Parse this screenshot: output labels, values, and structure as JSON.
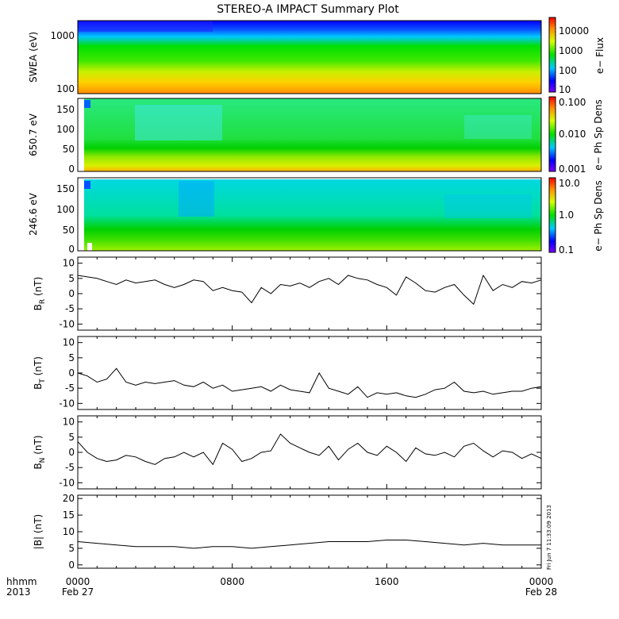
{
  "title": "STEREO-A IMPACT Summary Plot",
  "time_axis": {
    "row1": [
      "0000",
      "0800",
      "1600",
      "0000"
    ],
    "row2": [
      "Feb 27",
      "",
      "",
      "Feb 28"
    ],
    "left_row1": "hhmm",
    "left_row2": "2013"
  },
  "stamp": "Fri Jun  7 11:33:09 2013",
  "chart_data": [
    {
      "type": "heatmap",
      "ylabel": "SWEA (eV)",
      "yticks": [
        "1000",
        "100"
      ],
      "colorbar": {
        "label": "e− Flux",
        "ticks": [
          "10000",
          "1000",
          "100",
          "10"
        ]
      }
    },
    {
      "type": "heatmap",
      "ylabel": "650.7 eV",
      "yticks": [
        "150",
        "100",
        "50",
        "0"
      ],
      "colorbar": {
        "label": "e− Ph Sp Dens",
        "ticks": [
          "0.100",
          "0.010",
          "0.001"
        ]
      }
    },
    {
      "type": "heatmap",
      "ylabel": "246.6 eV",
      "yticks": [
        "150",
        "100",
        "50",
        "0"
      ],
      "colorbar": {
        "label": "e− Ph Sp Dens",
        "ticks": [
          "10.0",
          "1.0",
          "0.1"
        ]
      }
    },
    {
      "type": "line",
      "ylabel": "B",
      "ylabel_sub": "R",
      "ylabel_unit": "(nT)",
      "ylim": [
        -12,
        12
      ],
      "yticks": [
        10,
        5,
        0,
        -5,
        -10
      ],
      "x_hours": [
        0,
        0.5,
        1,
        1.5,
        2,
        2.5,
        3,
        3.5,
        4,
        4.5,
        5,
        5.5,
        6,
        6.5,
        7,
        7.5,
        8,
        8.5,
        9,
        9.5,
        10,
        10.5,
        11,
        11.5,
        12,
        12.5,
        13,
        13.5,
        14,
        14.5,
        15,
        15.5,
        16,
        16.5,
        17,
        17.5,
        18,
        18.5,
        19,
        19.5,
        20,
        20.5,
        21,
        21.5,
        22,
        22.5,
        23,
        23.5,
        24
      ],
      "values": [
        6,
        5.5,
        5,
        4,
        3,
        4.5,
        3.5,
        4,
        4.5,
        3,
        2,
        3,
        4.5,
        4,
        1,
        2,
        1,
        0.5,
        -3,
        2,
        0,
        3,
        2.5,
        3.5,
        2,
        4,
        5,
        3,
        6,
        5,
        4.5,
        3,
        2,
        -0.5,
        5.5,
        3.5,
        1,
        0.5,
        2,
        3,
        -0.5,
        -3.5,
        6,
        1,
        3,
        2,
        4,
        3.5,
        4.5
      ]
    },
    {
      "type": "line",
      "ylabel": "B",
      "ylabel_sub": "T",
      "ylabel_unit": "(nT)",
      "ylim": [
        -12,
        12
      ],
      "yticks": [
        10,
        5,
        0,
        -5,
        -10
      ],
      "x_hours": [
        0,
        0.5,
        1,
        1.5,
        2,
        2.5,
        3,
        3.5,
        4,
        4.5,
        5,
        5.5,
        6,
        6.5,
        7,
        7.5,
        8,
        8.5,
        9,
        9.5,
        10,
        10.5,
        11,
        11.5,
        12,
        12.5,
        13,
        13.5,
        14,
        14.5,
        15,
        15.5,
        16,
        16.5,
        17,
        17.5,
        18,
        18.5,
        19,
        19.5,
        20,
        20.5,
        21,
        21.5,
        22,
        22.5,
        23,
        23.5,
        24
      ],
      "values": [
        0,
        -1,
        -3,
        -2,
        1.5,
        -3,
        -4,
        -3,
        -3.5,
        -3,
        -2.5,
        -4,
        -4.5,
        -3,
        -5,
        -4,
        -6,
        -5.5,
        -5,
        -4.5,
        -6,
        -4,
        -5.5,
        -6,
        -6.5,
        0,
        -5,
        -6,
        -7,
        -4.5,
        -8,
        -6.5,
        -7,
        -6.5,
        -7.5,
        -8,
        -7,
        -5.5,
        -5,
        -3,
        -6,
        -6.5,
        -6,
        -7,
        -6.5,
        -6,
        -6,
        -5,
        -4.5
      ]
    },
    {
      "type": "line",
      "ylabel": "B",
      "ylabel_sub": "N",
      "ylabel_unit": "(nT)",
      "ylim": [
        -12,
        12
      ],
      "yticks": [
        10,
        5,
        0,
        -5,
        -10
      ],
      "x_hours": [
        0,
        0.5,
        1,
        1.5,
        2,
        2.5,
        3,
        3.5,
        4,
        4.5,
        5,
        5.5,
        6,
        6.5,
        7,
        7.5,
        8,
        8.5,
        9,
        9.5,
        10,
        10.5,
        11,
        11.5,
        12,
        12.5,
        13,
        13.5,
        14,
        14.5,
        15,
        15.5,
        16,
        16.5,
        17,
        17.5,
        18,
        18.5,
        19,
        19.5,
        20,
        20.5,
        21,
        21.5,
        22,
        22.5,
        23,
        23.5,
        24
      ],
      "values": [
        3.5,
        0,
        -2,
        -3,
        -2.5,
        -1,
        -1.5,
        -3,
        -4,
        -2,
        -1.5,
        0,
        -1.5,
        0,
        -4,
        3,
        1,
        -3,
        -2,
        0,
        0.5,
        6,
        3,
        1.5,
        0,
        -1,
        2,
        -2.5,
        1,
        3,
        0,
        -1,
        2,
        0,
        -3,
        1.5,
        -0.5,
        -1,
        0,
        -1.5,
        2,
        3,
        0.5,
        -1.5,
        0.5,
        0,
        -2,
        -0.5,
        -2
      ]
    },
    {
      "type": "line",
      "ylabel": "|B| (nT)",
      "ylim": [
        -1,
        21
      ],
      "yticks": [
        20,
        15,
        10,
        5,
        0
      ],
      "x_hours": [
        0,
        1,
        2,
        3,
        4,
        5,
        6,
        7,
        8,
        9,
        10,
        11,
        12,
        13,
        14,
        15,
        16,
        17,
        18,
        19,
        20,
        21,
        22,
        23,
        24
      ],
      "values": [
        7,
        6.5,
        6,
        5.5,
        5.5,
        5.5,
        5,
        5.5,
        5.5,
        5,
        5.5,
        6,
        6.5,
        7,
        7,
        7,
        7.5,
        7.5,
        7,
        6.5,
        6,
        6.5,
        6,
        6,
        6
      ]
    }
  ]
}
